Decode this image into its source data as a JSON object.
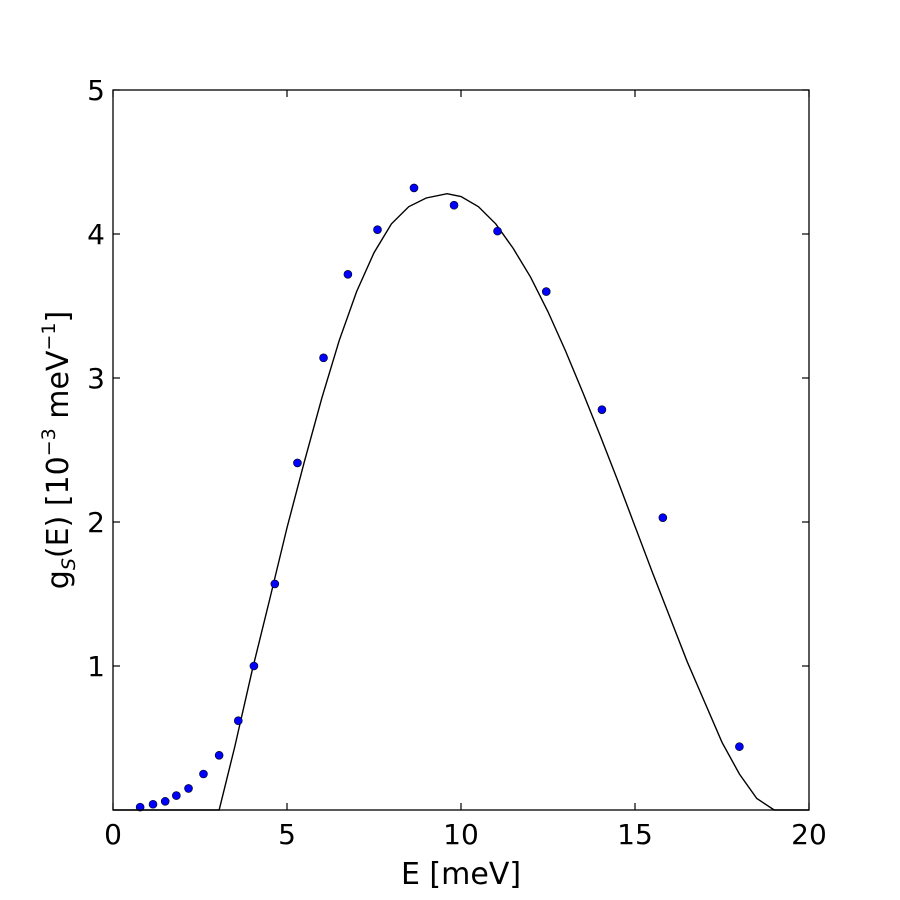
{
  "chart_data": {
    "type": "scatter",
    "xlabel": "E [meV]",
    "ylabel": {
      "main": "g",
      "subscript": "S",
      "after_subscript": "(E) [10",
      "exponent1": "−3",
      "middle": " meV",
      "exponent2": "−1",
      "end": "]"
    },
    "xlim": [
      0,
      20
    ],
    "ylim": [
      0,
      5
    ],
    "xticks": [
      0,
      5,
      10,
      15,
      20
    ],
    "yticks": [
      1,
      2,
      3,
      4,
      5
    ],
    "grid": false,
    "colors": {
      "points": "#0000ff",
      "point_edge": "#000000",
      "curve": "#000000"
    },
    "series": [
      {
        "kind": "points",
        "x": [
          0.78,
          1.15,
          1.5,
          1.82,
          2.17,
          2.6,
          3.05,
          3.6,
          4.05,
          4.65,
          5.3,
          6.05,
          6.75,
          7.6,
          8.65,
          9.8,
          11.05,
          12.45,
          14.05,
          15.8,
          18.0
        ],
        "y": [
          0.02,
          0.04,
          0.06,
          0.1,
          0.15,
          0.25,
          0.38,
          0.62,
          1.0,
          1.57,
          2.41,
          3.14,
          3.72,
          4.03,
          4.32,
          4.2,
          4.02,
          3.6,
          2.78,
          2.03,
          0.44
        ]
      },
      {
        "kind": "curve",
        "x": [
          0,
          3.05,
          3.5,
          4.0,
          4.5,
          5.0,
          5.5,
          6.0,
          6.5,
          7.0,
          7.5,
          8.0,
          8.5,
          9.0,
          9.6,
          10.0,
          10.5,
          11.0,
          11.5,
          12.0,
          12.5,
          13.0,
          13.5,
          14.0,
          14.5,
          15.0,
          15.5,
          16.0,
          16.5,
          17.0,
          17.5,
          18.0,
          18.5,
          19.0,
          20.0
        ],
        "y": [
          0.0,
          0.0,
          0.44,
          0.97,
          1.46,
          1.96,
          2.42,
          2.86,
          3.26,
          3.6,
          3.87,
          4.07,
          4.19,
          4.25,
          4.28,
          4.26,
          4.19,
          4.07,
          3.9,
          3.7,
          3.46,
          3.19,
          2.9,
          2.6,
          2.29,
          1.97,
          1.65,
          1.34,
          1.03,
          0.75,
          0.47,
          0.25,
          0.08,
          0.0,
          0.0
        ]
      }
    ]
  }
}
